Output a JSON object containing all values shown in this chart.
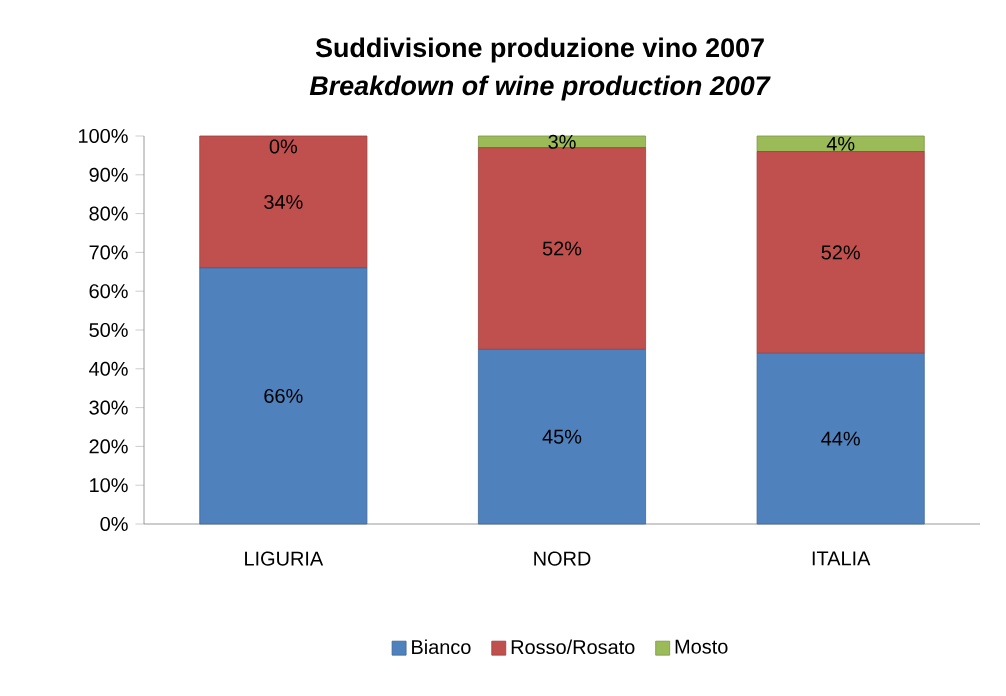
{
  "chart_data": {
    "type": "bar",
    "stacked": true,
    "title": "Suddivisione produzione vino 2007",
    "subtitle": "*Breakdown of wine production 2007*",
    "categories": [
      "LIGURIA",
      "NORD",
      "ITALIA"
    ],
    "series": [
      {
        "name": "Bianco",
        "color": "#4f81bd",
        "values": [
          66,
          45,
          44
        ],
        "value_labels": [
          "66%",
          "45%",
          "44%"
        ]
      },
      {
        "name": "Rosso/Rosato",
        "color": "#c0504d",
        "values": [
          34,
          52,
          52
        ],
        "value_labels": [
          "34%",
          "52%",
          "52%"
        ]
      },
      {
        "name": "Mosto",
        "color": "#9bbb59",
        "values": [
          0,
          3,
          4
        ],
        "value_labels": [
          "0%",
          "3%",
          "4%"
        ]
      }
    ],
    "ylim": [
      0,
      100
    ],
    "yticks": [
      {
        "value": 0,
        "label": "0%"
      },
      {
        "value": 10,
        "label": "10%"
      },
      {
        "value": 20,
        "label": "20%"
      },
      {
        "value": 30,
        "label": "30%"
      },
      {
        "value": 40,
        "label": "40%"
      },
      {
        "value": 50,
        "label": "50%"
      },
      {
        "value": 60,
        "label": "60%"
      },
      {
        "value": 70,
        "label": "70%"
      },
      {
        "value": 80,
        "label": "80%"
      },
      {
        "value": 90,
        "label": "90%"
      },
      {
        "value": 100,
        "label": "100%"
      }
    ],
    "legend": "bottom"
  }
}
